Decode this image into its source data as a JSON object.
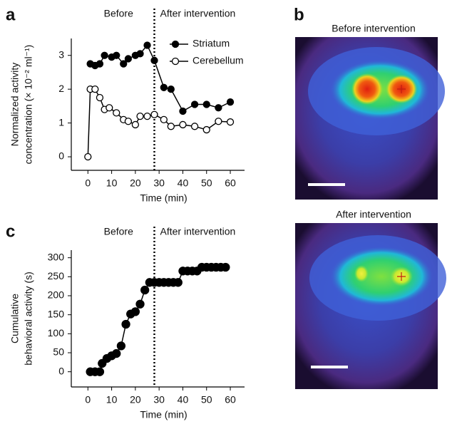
{
  "panel_labels": [
    "a",
    "b",
    "c"
  ],
  "images": [
    {
      "title": "Before intervention"
    },
    {
      "title": "After intervention"
    }
  ],
  "chart_data": [
    {
      "type": "line",
      "annotations": [
        "Before",
        "After intervention"
      ],
      "vline": 28,
      "y_label": [
        "Normalized activity",
        "concentration (× 10⁻² ml⁻¹)"
      ],
      "x_label": "Time (min)",
      "xlim": [
        -7,
        66
      ],
      "xticks": [
        0,
        10,
        20,
        30,
        40,
        50,
        60
      ],
      "ylim": [
        -0.4,
        3.5
      ],
      "yticks": [
        0,
        1,
        2,
        3
      ],
      "legend": "top-right",
      "series": [
        {
          "name": "Striatum",
          "color": "#000000",
          "marker_fill": "#000000",
          "x": [
            1,
            3,
            5,
            7,
            10,
            12,
            15,
            17,
            20,
            22,
            25,
            28,
            32,
            35,
            40,
            45,
            50,
            55,
            60
          ],
          "values": [
            2.75,
            2.7,
            2.75,
            3.0,
            2.95,
            3.0,
            2.75,
            2.9,
            3.0,
            3.05,
            3.3,
            2.85,
            2.05,
            2.0,
            1.35,
            1.55,
            1.55,
            1.45,
            1.62
          ]
        },
        {
          "name": "Cerebellum",
          "color": "#000000",
          "marker_fill": "#ffffff",
          "x": [
            0,
            1,
            3,
            5,
            7,
            9,
            12,
            15,
            17,
            20,
            22,
            25,
            28,
            32,
            35,
            40,
            45,
            50,
            55,
            60
          ],
          "values": [
            0,
            2.0,
            2.0,
            1.75,
            1.4,
            1.45,
            1.3,
            1.1,
            1.05,
            0.95,
            1.2,
            1.2,
            1.25,
            1.1,
            0.9,
            0.95,
            0.9,
            0.8,
            1.05,
            1.03
          ]
        }
      ]
    },
    {
      "type": "line",
      "annotations": [
        "Before",
        "After intervention"
      ],
      "vline": 28,
      "y_label": [
        "Cumulative",
        "behavioral activity (s)"
      ],
      "x_label": "Time (min)",
      "xlim": [
        -7,
        66
      ],
      "xticks": [
        0,
        10,
        20,
        30,
        40,
        50,
        60
      ],
      "ylim": [
        -40,
        320
      ],
      "yticks": [
        0,
        50,
        100,
        150,
        200,
        250,
        300
      ],
      "series": [
        {
          "color": "#000000",
          "marker_fill": "#000000",
          "x": [
            1,
            3,
            5,
            6,
            8,
            10,
            12,
            14,
            16,
            18,
            20,
            22,
            24,
            26,
            28,
            30,
            32,
            34,
            36,
            38,
            40,
            42,
            44,
            46,
            48,
            50,
            52,
            54,
            56,
            58
          ],
          "values": [
            0,
            0,
            0,
            22,
            35,
            42,
            48,
            68,
            125,
            152,
            158,
            178,
            215,
            235,
            235,
            235,
            235,
            235,
            235,
            235,
            265,
            265,
            265,
            265,
            275,
            275,
            275,
            275,
            275,
            275
          ]
        }
      ]
    }
  ]
}
